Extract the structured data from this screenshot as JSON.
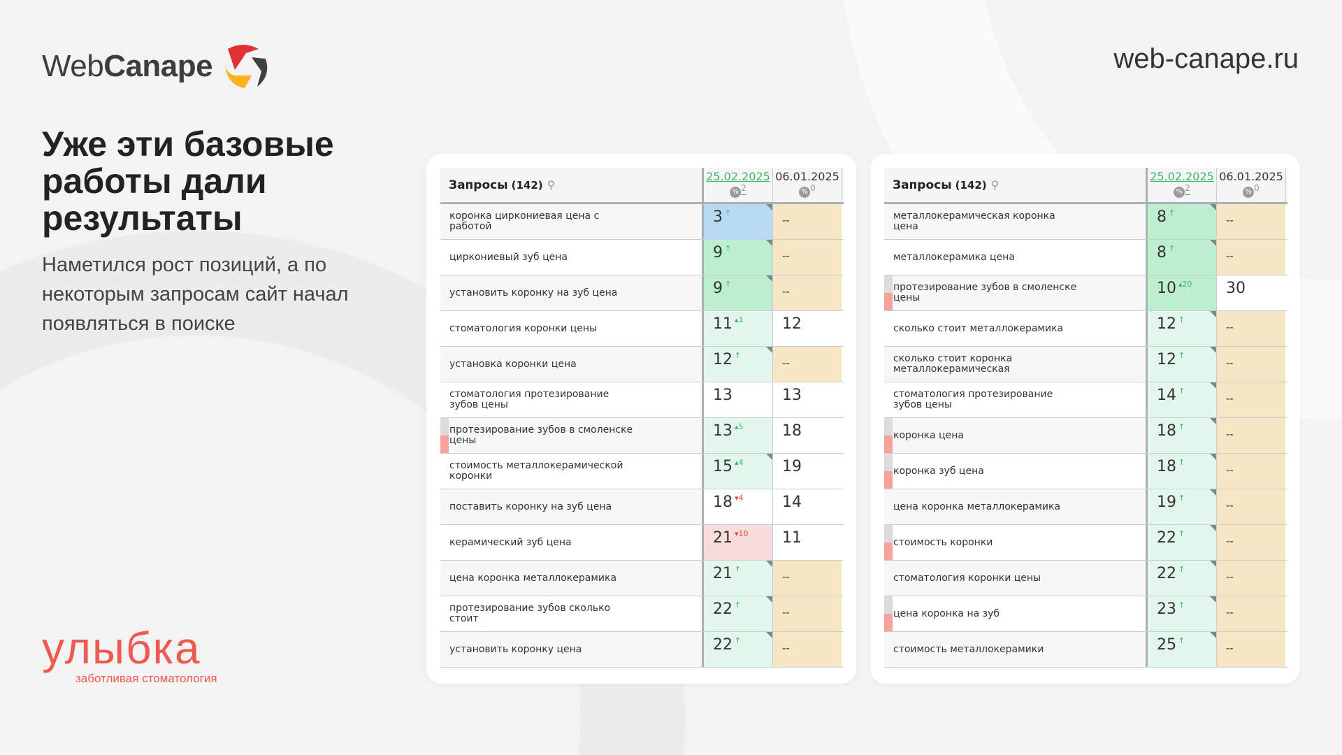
{
  "header": {
    "logo_light": "Web",
    "logo_bold": "Canape",
    "site": "web-canape.ru"
  },
  "headline": "Уже эти базовые работы дали результаты",
  "subtitle": "Наметился рост позиций, а по некоторым запросам сайт начал появляться в поиске",
  "brand": {
    "name": "улыбка",
    "tagline": "заботливая стоматология"
  },
  "colors": {
    "blue": "#b7d9f1",
    "green": "#bdeece",
    "light_green": "#e3f6eb",
    "pink": "#f9dddd",
    "beige": "#f6e7c4",
    "white": "#ffffff",
    "accent": "#ec5a50"
  },
  "tables": [
    {
      "title": "Запросы",
      "count": "(142)",
      "date1": "25.02.2025",
      "date1_count": "2",
      "date2": "06.01.2025",
      "date2_count": "0",
      "rows": [
        {
          "query": "коронка циркониевая цена с работой",
          "pos": "3",
          "delta": "↑",
          "dir": "up",
          "prev": "--",
          "fill": "blue",
          "prev_fill": "beige",
          "corner": true,
          "marker": false
        },
        {
          "query": "циркониевый зуб цена",
          "pos": "9",
          "delta": "↑",
          "dir": "up",
          "prev": "--",
          "fill": "green",
          "prev_fill": "beige",
          "corner": true,
          "marker": false
        },
        {
          "query": "установить коронку на зуб цена",
          "pos": "9",
          "delta": "↑",
          "dir": "up",
          "prev": "--",
          "fill": "green",
          "prev_fill": "beige",
          "corner": true,
          "marker": false
        },
        {
          "query": "стоматология коронки цены",
          "pos": "11",
          "delta": "▴1",
          "dir": "up",
          "prev": "12",
          "fill": "light_green",
          "prev_fill": "white",
          "corner": false,
          "marker": false
        },
        {
          "query": "установка коронки цена",
          "pos": "12",
          "delta": "↑",
          "dir": "up",
          "prev": "--",
          "fill": "light_green",
          "prev_fill": "beige",
          "corner": true,
          "marker": false
        },
        {
          "query": "стоматология протезирование зубов цены",
          "pos": "13",
          "delta": "",
          "dir": "up",
          "prev": "13",
          "fill": "white",
          "prev_fill": "white",
          "corner": false,
          "marker": false
        },
        {
          "query": "протезирование зубов в смоленске цены",
          "pos": "13",
          "delta": "▴5",
          "dir": "up",
          "prev": "18",
          "fill": "light_green",
          "prev_fill": "white",
          "corner": false,
          "marker": true
        },
        {
          "query": "стоимость металлокерамической коронки",
          "pos": "15",
          "delta": "▴4",
          "dir": "up",
          "prev": "19",
          "fill": "light_green",
          "prev_fill": "white",
          "corner": true,
          "marker": false
        },
        {
          "query": "поставить коронку на зуб цена",
          "pos": "18",
          "delta": "▾4",
          "dir": "down",
          "prev": "14",
          "fill": "white",
          "prev_fill": "white",
          "corner": false,
          "marker": false
        },
        {
          "query": "керамический зуб цена",
          "pos": "21",
          "delta": "▾10",
          "dir": "down",
          "prev": "11",
          "fill": "pink",
          "prev_fill": "white",
          "corner": false,
          "marker": false
        },
        {
          "query": "цена коронка металлокерамика",
          "pos": "21",
          "delta": "↑",
          "dir": "up",
          "prev": "--",
          "fill": "light_green",
          "prev_fill": "beige",
          "corner": true,
          "marker": false
        },
        {
          "query": "протезирование зубов сколько стоит",
          "pos": "22",
          "delta": "↑",
          "dir": "up",
          "prev": "--",
          "fill": "light_green",
          "prev_fill": "beige",
          "corner": true,
          "marker": false
        },
        {
          "query": "установить коронку цена",
          "pos": "22",
          "delta": "↑",
          "dir": "up",
          "prev": "--",
          "fill": "light_green",
          "prev_fill": "beige",
          "corner": true,
          "marker": false
        }
      ]
    },
    {
      "title": "Запросы",
      "count": "(142)",
      "date1": "25.02.2025",
      "date1_count": "2",
      "date2": "06.01.2025",
      "date2_count": "0",
      "rows": [
        {
          "query": "металлокерамическая коронка цена",
          "pos": "8",
          "delta": "↑",
          "dir": "up",
          "prev": "--",
          "fill": "green",
          "prev_fill": "beige",
          "corner": true,
          "marker": false
        },
        {
          "query": "металлокерамика цена",
          "pos": "8",
          "delta": "↑",
          "dir": "up",
          "prev": "--",
          "fill": "green",
          "prev_fill": "beige",
          "corner": true,
          "marker": false
        },
        {
          "query": "протезирование зубов в смоленске цены",
          "pos": "10",
          "delta": "▴20",
          "dir": "up",
          "prev": "30",
          "fill": "green",
          "prev_fill": "white",
          "corner": false,
          "marker": true
        },
        {
          "query": "сколько стоит металлокерамика",
          "pos": "12",
          "delta": "↑",
          "dir": "up",
          "prev": "--",
          "fill": "light_green",
          "prev_fill": "beige",
          "corner": true,
          "marker": false
        },
        {
          "query": "сколько стоит коронка металлокерамическая",
          "pos": "12",
          "delta": "↑",
          "dir": "up",
          "prev": "--",
          "fill": "light_green",
          "prev_fill": "beige",
          "corner": true,
          "marker": false
        },
        {
          "query": "стоматология протезирование зубов цены",
          "pos": "14",
          "delta": "↑",
          "dir": "up",
          "prev": "--",
          "fill": "light_green",
          "prev_fill": "beige",
          "corner": true,
          "marker": false
        },
        {
          "query": "коронка цена",
          "pos": "18",
          "delta": "↑",
          "dir": "up",
          "prev": "--",
          "fill": "light_green",
          "prev_fill": "beige",
          "corner": true,
          "marker": true
        },
        {
          "query": "коронка зуб цена",
          "pos": "18",
          "delta": "↑",
          "dir": "up",
          "prev": "--",
          "fill": "light_green",
          "prev_fill": "beige",
          "corner": true,
          "marker": true
        },
        {
          "query": "цена коронка металлокерамика",
          "pos": "19",
          "delta": "↑",
          "dir": "up",
          "prev": "--",
          "fill": "light_green",
          "prev_fill": "beige",
          "corner": true,
          "marker": false
        },
        {
          "query": "стоимость коронки",
          "pos": "22",
          "delta": "↑",
          "dir": "up",
          "prev": "--",
          "fill": "light_green",
          "prev_fill": "beige",
          "corner": true,
          "marker": true
        },
        {
          "query": "стоматология коронки цены",
          "pos": "22",
          "delta": "↑",
          "dir": "up",
          "prev": "--",
          "fill": "light_green",
          "prev_fill": "beige",
          "corner": true,
          "marker": false
        },
        {
          "query": "цена коронка на зуб",
          "pos": "23",
          "delta": "↑",
          "dir": "up",
          "prev": "--",
          "fill": "light_green",
          "prev_fill": "beige",
          "corner": true,
          "marker": true
        },
        {
          "query": "стоимость металлокерамики",
          "pos": "25",
          "delta": "↑",
          "dir": "up",
          "prev": "--",
          "fill": "light_green",
          "prev_fill": "beige",
          "corner": true,
          "marker": false
        }
      ]
    }
  ]
}
